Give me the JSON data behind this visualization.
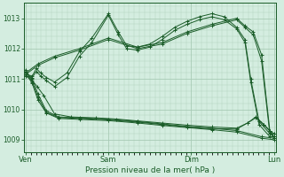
{
  "bg_color": "#d4ede0",
  "line_color": "#1a5c28",
  "grid_color": "#a8cbb5",
  "xlabel": "Pression niveau de la mer( hPa )",
  "xtick_labels": [
    "Ven",
    "Sam",
    "Dim",
    "Lun"
  ],
  "xtick_positions": [
    0,
    1,
    2,
    3
  ],
  "ylim": [
    1008.6,
    1013.5
  ],
  "yticks": [
    1009,
    1010,
    1011,
    1012,
    1013
  ],
  "xlim": [
    -0.02,
    3.02
  ],
  "series": [
    {
      "x": [
        0.0,
        0.08,
        0.13,
        0.18,
        0.25,
        0.35,
        0.5,
        0.65,
        0.8,
        1.0,
        1.12,
        1.22,
        1.35,
        1.5,
        1.65,
        1.8,
        1.95,
        2.1,
        2.25,
        2.4,
        2.55,
        2.65,
        2.72,
        2.82,
        2.95,
        3.0
      ],
      "y": [
        1011.15,
        1011.1,
        1011.35,
        1011.2,
        1011.05,
        1010.9,
        1011.2,
        1011.9,
        1012.35,
        1013.15,
        1012.55,
        1012.1,
        1012.05,
        1012.15,
        1012.4,
        1012.7,
        1012.9,
        1013.05,
        1013.15,
        1013.05,
        1012.7,
        1012.3,
        1011.0,
        1009.6,
        1009.2,
        1009.2
      ]
    },
    {
      "x": [
        0.0,
        0.08,
        0.13,
        0.18,
        0.25,
        0.35,
        0.5,
        0.65,
        0.8,
        1.0,
        1.12,
        1.22,
        1.35,
        1.5,
        1.65,
        1.8,
        1.95,
        2.1,
        2.25,
        2.4,
        2.55,
        2.65,
        2.72,
        2.82,
        2.95,
        3.0
      ],
      "y": [
        1011.1,
        1011.05,
        1011.25,
        1011.1,
        1010.95,
        1010.75,
        1011.05,
        1011.75,
        1012.2,
        1013.1,
        1012.45,
        1012.0,
        1011.95,
        1012.05,
        1012.3,
        1012.6,
        1012.8,
        1012.95,
        1013.05,
        1012.95,
        1012.65,
        1012.2,
        1010.9,
        1009.5,
        1009.1,
        1009.1
      ]
    },
    {
      "x": [
        0.0,
        0.15,
        0.35,
        0.65,
        1.0,
        1.35,
        1.65,
        1.95,
        2.25,
        2.55,
        2.65,
        2.75,
        2.85,
        2.95,
        3.0
      ],
      "y": [
        1011.2,
        1011.5,
        1011.75,
        1012.0,
        1012.35,
        1012.05,
        1012.2,
        1012.55,
        1012.8,
        1013.0,
        1012.75,
        1012.55,
        1011.8,
        1009.3,
        1009.2
      ]
    },
    {
      "x": [
        0.0,
        0.15,
        0.35,
        0.65,
        1.0,
        1.35,
        1.65,
        1.95,
        2.25,
        2.55,
        2.65,
        2.75,
        2.85,
        2.95,
        3.0
      ],
      "y": [
        1011.15,
        1011.45,
        1011.7,
        1011.95,
        1012.3,
        1012.0,
        1012.15,
        1012.5,
        1012.75,
        1012.95,
        1012.7,
        1012.45,
        1011.6,
        1009.2,
        1009.1
      ]
    },
    {
      "x": [
        0.0,
        0.08,
        0.15,
        0.25,
        0.4,
        0.65,
        1.0,
        1.35,
        1.65,
        1.95,
        2.25,
        2.55,
        2.85,
        3.0
      ],
      "y": [
        1011.25,
        1011.0,
        1010.5,
        1009.95,
        1009.75,
        1009.72,
        1009.68,
        1009.6,
        1009.52,
        1009.44,
        1009.38,
        1009.3,
        1009.1,
        1009.05
      ]
    },
    {
      "x": [
        0.0,
        0.08,
        0.15,
        0.25,
        0.4,
        0.65,
        1.0,
        1.35,
        1.65,
        1.95,
        2.25,
        2.55,
        2.85,
        3.0
      ],
      "y": [
        1011.2,
        1010.85,
        1010.3,
        1009.88,
        1009.7,
        1009.67,
        1009.63,
        1009.55,
        1009.47,
        1009.4,
        1009.33,
        1009.25,
        1009.05,
        1009.0
      ]
    },
    {
      "x": [
        0.0,
        0.08,
        0.15,
        0.25,
        0.4,
        0.65,
        1.0,
        1.35,
        1.65,
        1.95,
        2.25,
        2.55,
        2.68,
        2.78,
        2.88,
        2.95,
        3.0
      ],
      "y": [
        1011.3,
        1010.9,
        1010.4,
        1009.9,
        1009.73,
        1009.7,
        1009.65,
        1009.58,
        1009.5,
        1009.42,
        1009.36,
        1009.35,
        1009.55,
        1009.75,
        1009.5,
        1009.3,
        1009.1
      ]
    },
    {
      "x": [
        0.0,
        0.08,
        0.14,
        0.22,
        0.35,
        0.55,
        0.85,
        1.1,
        1.35,
        1.65,
        1.95,
        2.25,
        2.55,
        2.68,
        2.78,
        2.88,
        2.95,
        3.0
      ],
      "y": [
        1011.1,
        1010.95,
        1010.75,
        1010.45,
        1009.85,
        1009.75,
        1009.72,
        1009.68,
        1009.62,
        1009.55,
        1009.48,
        1009.42,
        1009.38,
        1009.55,
        1009.72,
        1009.48,
        1009.28,
        1009.05
      ]
    }
  ]
}
